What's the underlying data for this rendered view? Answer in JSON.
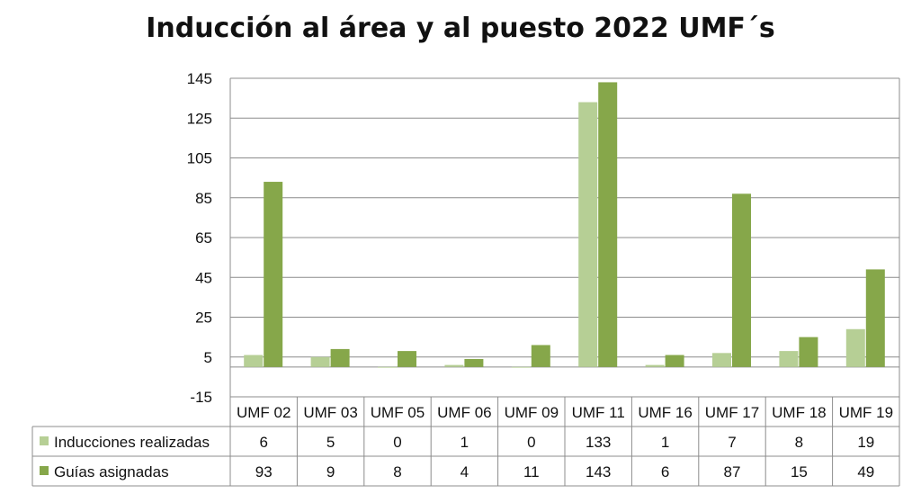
{
  "chart_data": {
    "type": "bar",
    "title": "Inducción al área y al puesto 2022 UMF´s",
    "categories": [
      "UMF 02",
      "UMF 03",
      "UMF 05",
      "UMF 06",
      "UMF 09",
      "UMF 11",
      "UMF 16",
      "UMF 17",
      "UMF 18",
      "UMF 19"
    ],
    "series": [
      {
        "name": "Inducciones realizadas",
        "color": "#b6cf95",
        "values": [
          6,
          5,
          0,
          1,
          0,
          133,
          1,
          7,
          8,
          19
        ]
      },
      {
        "name": "Guías asignadas",
        "color": "#86a74a",
        "values": [
          93,
          9,
          8,
          4,
          11,
          143,
          6,
          87,
          15,
          49
        ]
      }
    ],
    "ylim": [
      -15,
      145
    ],
    "yticks": [
      -15,
      5,
      25,
      45,
      65,
      85,
      105,
      125,
      145
    ],
    "grid": true,
    "legend": "data-table-below"
  }
}
